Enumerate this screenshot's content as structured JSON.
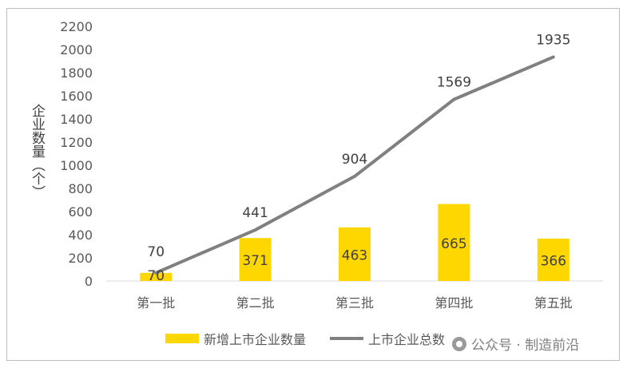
{
  "chart_data": {
    "type": "bar+line",
    "categories": [
      "第一批",
      "第二批",
      "第三批",
      "第四批",
      "第五批"
    ],
    "series": [
      {
        "name": "新增上市企业数量",
        "type": "bar",
        "values": [
          70,
          371,
          463,
          665,
          366
        ],
        "color": "#ffd700"
      },
      {
        "name": "上市企业总数",
        "type": "line",
        "values": [
          70,
          441,
          904,
          1569,
          1935
        ],
        "color": "#808080"
      }
    ],
    "ylabel": "企业数量（个）",
    "ylim": [
      0,
      2200
    ],
    "yticks": [
      0,
      200,
      400,
      600,
      800,
      1000,
      1200,
      1400,
      1600,
      1800,
      2000,
      2200
    ],
    "grid": false,
    "legend_position": "bottom"
  },
  "ylabel_chars": [
    "企",
    "业",
    "数",
    "量",
    "（",
    "个",
    "）"
  ],
  "watermark": "公众号 · 制造前沿"
}
